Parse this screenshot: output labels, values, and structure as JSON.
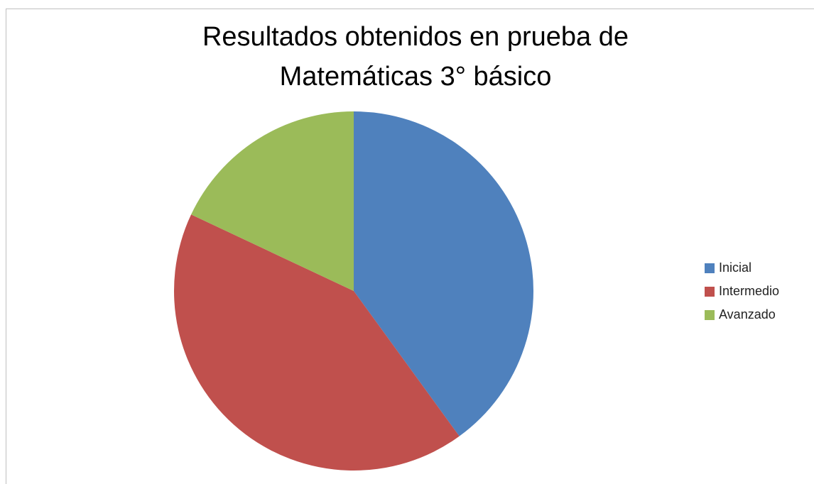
{
  "chart_data": {
    "type": "pie",
    "title": "Resultados obtenidos en prueba de Matemáticas 3° básico",
    "categories": [
      "Inicial",
      "Intermedio",
      "Avanzado"
    ],
    "values": [
      40,
      42,
      18
    ],
    "colors": [
      "#4f81bd",
      "#c0504d",
      "#9bbb59"
    ],
    "legend": "right"
  }
}
